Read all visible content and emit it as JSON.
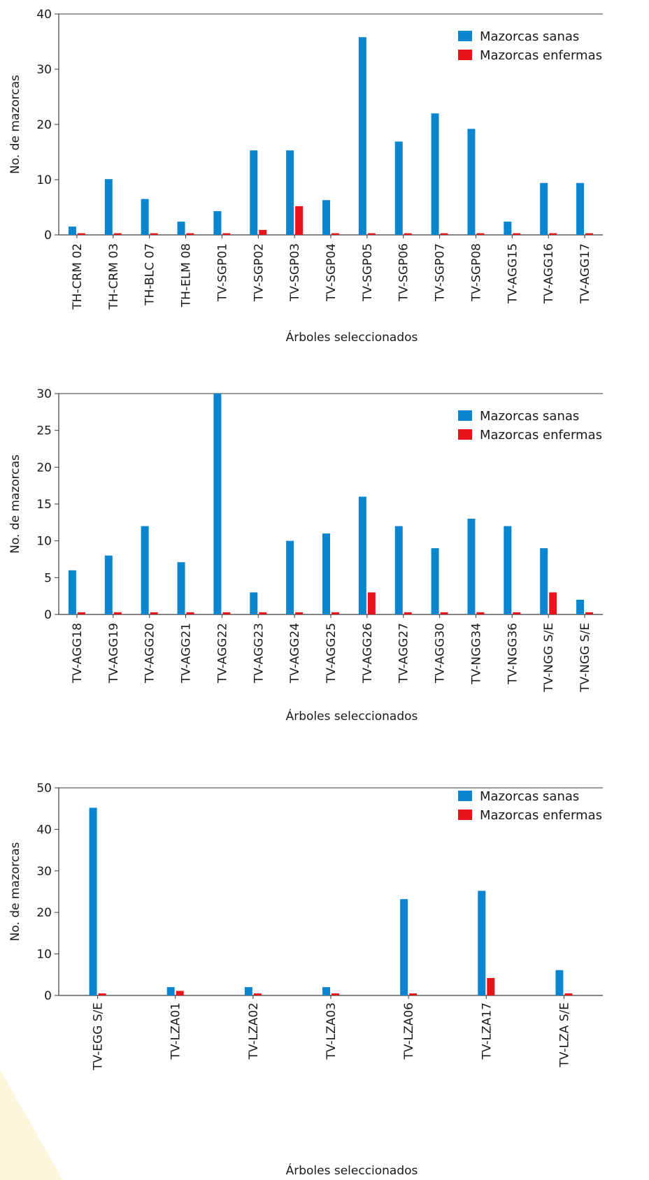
{
  "colors": {
    "healthy": "#0a86d0",
    "diseased": "#e8141c",
    "axis": "#3a3a3a",
    "corner": "#fcf7dc"
  },
  "chart_data": [
    {
      "type": "bar",
      "xlabel": "Árboles seleccionados",
      "ylabel": "No. de mazorcas",
      "ylim": [
        0,
        40
      ],
      "yticks": [
        "0",
        "10",
        "20",
        "30",
        "40"
      ],
      "ytick_values": [
        0,
        10,
        20,
        30,
        40
      ],
      "legend_position": "top-right",
      "categories": [
        "TH-CRM 02",
        "TH-CRM 03",
        "TH-BLC 07",
        "TH-ELM 08",
        "TV-SGP01",
        "TV-SGP02",
        "TV-SGP03",
        "TV-SGP04",
        "TV-SGP05",
        "TV-SGP06",
        "TV-SGP07",
        "TV-SGP08",
        "TV-AGG15",
        "TV-AGG16",
        "TV-AGG17"
      ],
      "series": [
        {
          "name": "Mazorcas sanas",
          "values": [
            1.5,
            10.1,
            6.5,
            2.4,
            4.3,
            15.3,
            15.3,
            6.3,
            35.8,
            16.9,
            22.0,
            19.2,
            2.4,
            9.4,
            9.4
          ]
        },
        {
          "name": "Mazorcas enfermas",
          "values": [
            0.3,
            0.3,
            0.3,
            0.3,
            0.3,
            0.9,
            5.2,
            0.3,
            0.3,
            0.3,
            0.3,
            0.3,
            0.3,
            0.3,
            0.3
          ]
        }
      ]
    },
    {
      "type": "bar",
      "xlabel": "Árboles seleccionados",
      "ylabel": "No. de mazorcas",
      "ylim": [
        0,
        30
      ],
      "yticks": [
        "0",
        "5",
        "10",
        "15",
        "20",
        "25",
        "30"
      ],
      "ytick_values": [
        0,
        5,
        10,
        15,
        20,
        25,
        30
      ],
      "legend_position": "top-right",
      "categories": [
        "TV-AGG18",
        "TV-AGG19",
        "TV-AGG20",
        "TV-AGG21",
        "TV-AGG22",
        "TV-AGG23",
        "TV-AGG24",
        "TV-AGG25",
        "TV-AGG26",
        "TV-AGG27",
        "TV-AGG30",
        "TV-NGG34",
        "TV-NGG36",
        "TV-NGG S/E",
        "TV-NGG S/E"
      ],
      "series": [
        {
          "name": "Mazorcas sanas",
          "values": [
            6,
            8,
            12,
            7.1,
            30,
            3,
            10,
            11,
            16,
            12,
            9,
            13,
            12,
            9,
            2
          ]
        },
        {
          "name": "Mazorcas enfermas",
          "values": [
            0.3,
            0.3,
            0.3,
            0.3,
            0.3,
            0.3,
            0.3,
            0.3,
            3,
            0.3,
            0.3,
            0.3,
            0.3,
            3,
            0.3
          ]
        }
      ]
    },
    {
      "type": "bar",
      "xlabel": "Árboles seleccionados",
      "ylabel": "No. de mazorcas",
      "ylim": [
        0,
        50
      ],
      "yticks": [
        "0",
        "10",
        "20",
        "30",
        "40",
        "50"
      ],
      "ytick_values": [
        0,
        10,
        20,
        30,
        40,
        50
      ],
      "legend_position": "top-right",
      "categories": [
        "TV-EGG S/E",
        "TV-LZA01",
        "TV-LZA02",
        "TV-LZA03",
        "TV-LZA06",
        "TV-LZA17",
        "TV-LZA S/E"
      ],
      "series": [
        {
          "name": "Mazorcas sanas",
          "values": [
            45.2,
            2,
            2,
            2,
            23.2,
            25.2,
            6.1
          ]
        },
        {
          "name": "Mazorcas enfermas",
          "values": [
            0.5,
            1.1,
            0.5,
            0.5,
            0.5,
            4.2,
            0.5
          ]
        }
      ]
    }
  ]
}
